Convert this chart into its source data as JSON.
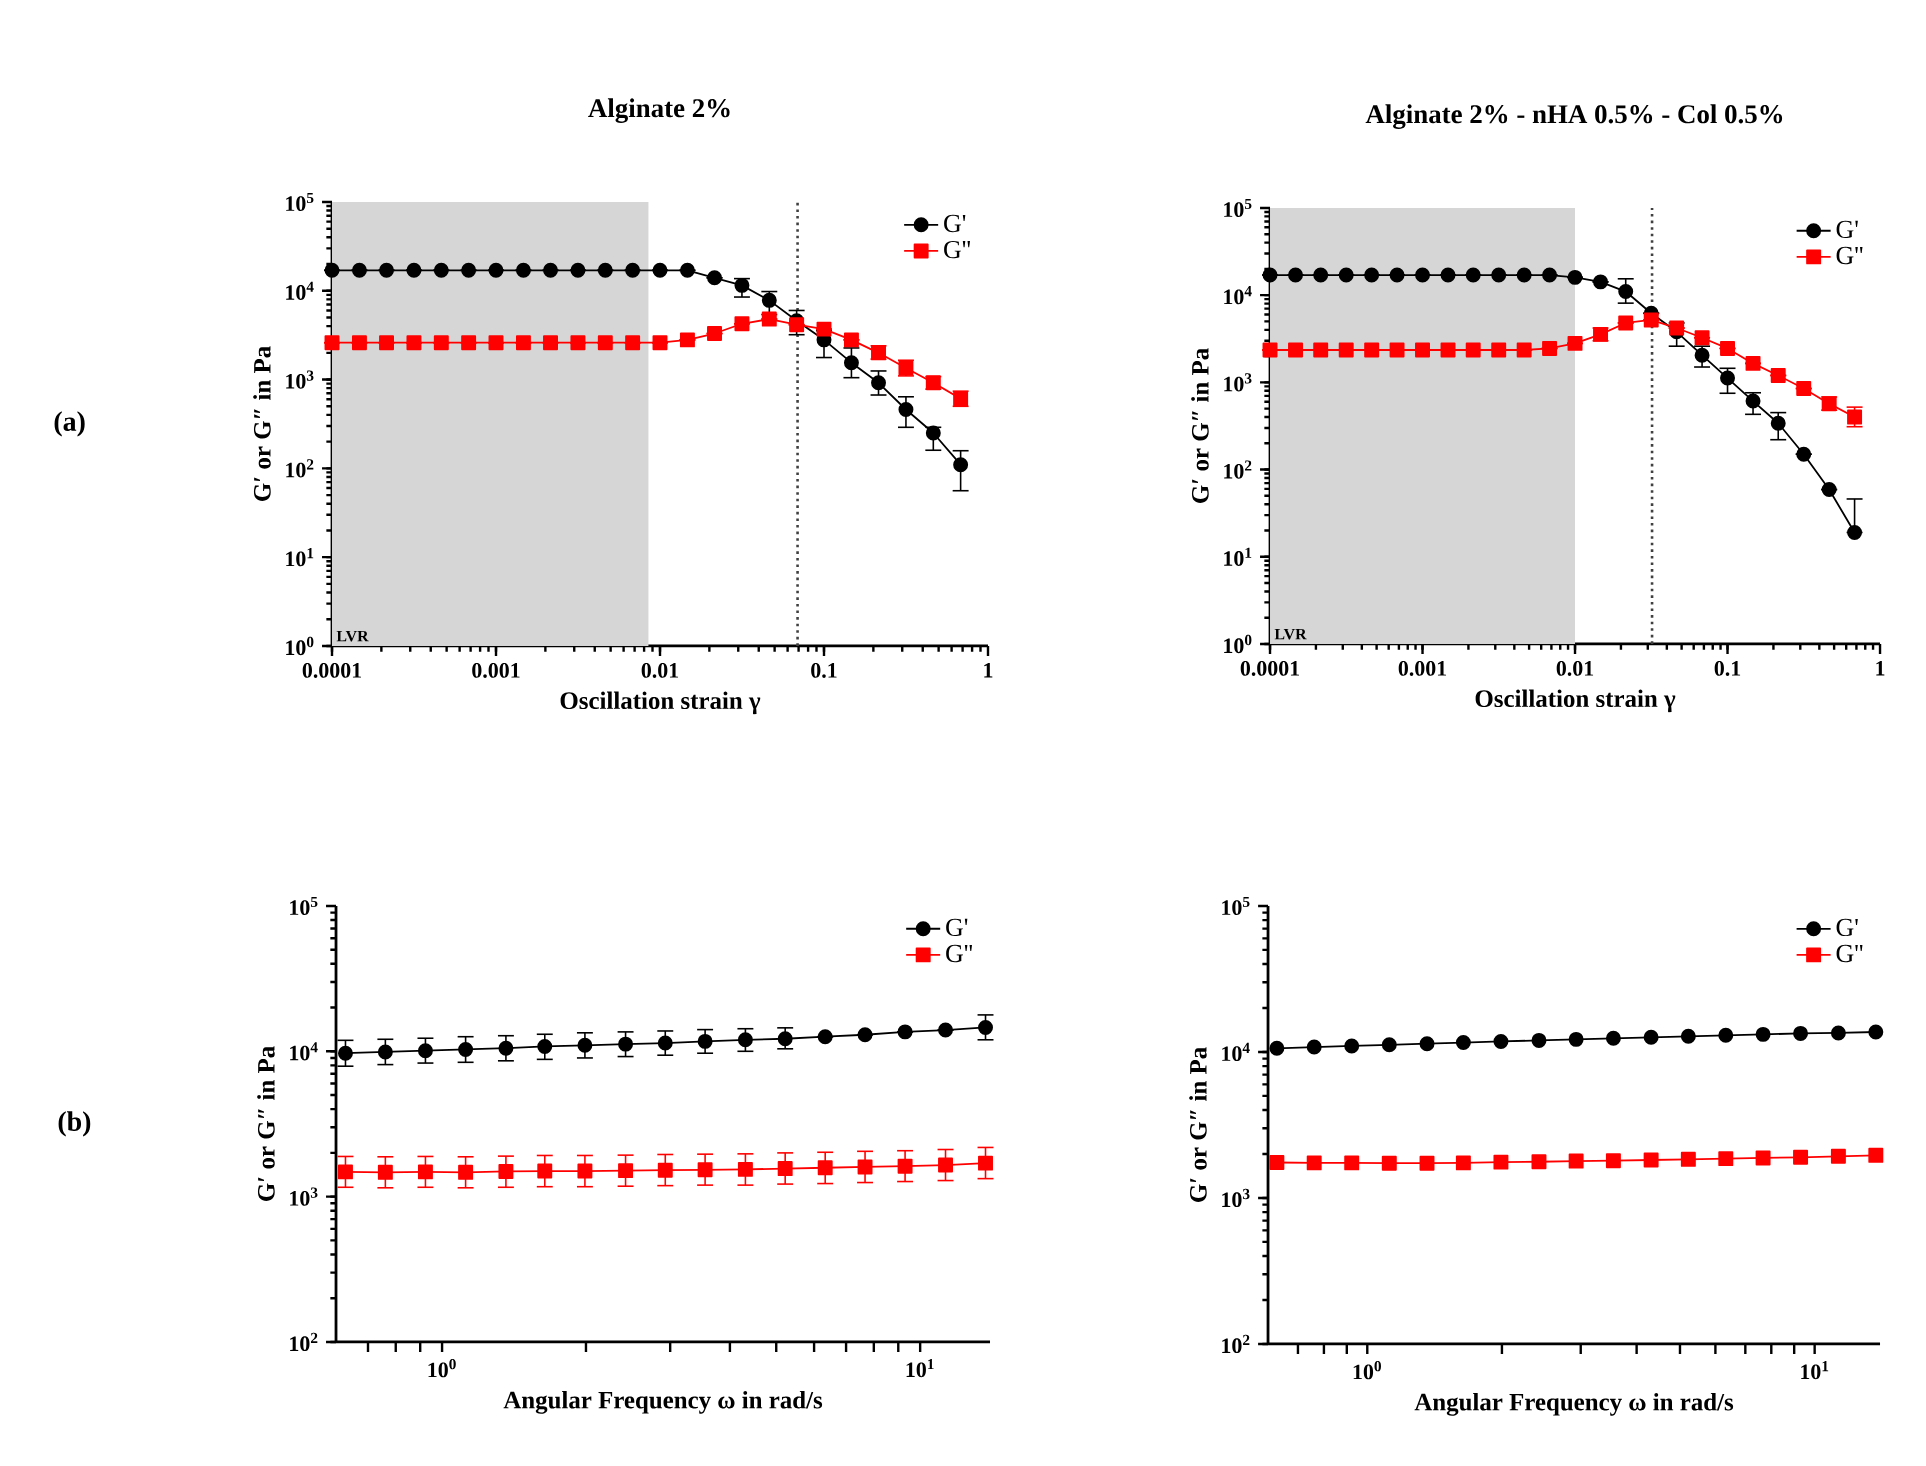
{
  "chart_data": [
    {
      "type": "line",
      "title": "Alginate 2%",
      "xlabel": "Oscillation strain γ",
      "ylabel": "G′ or G″ in Pa",
      "log": "xy",
      "legend": "top right",
      "annotations": [
        "(a)"
      ],
      "x": [
        0.0001,
        0.000147,
        0.000215,
        0.000316,
        0.000464,
        0.000681,
        0.001,
        0.00147,
        0.00215,
        0.00316,
        0.00464,
        0.00681,
        0.01,
        0.0147,
        0.0215,
        0.0316,
        0.0464,
        0.0681,
        0.1,
        0.147,
        0.215,
        0.316,
        0.464,
        0.681
      ],
      "xlim": [
        0.0001,
        1
      ],
      "ylim": [
        1,
        100000
      ],
      "xticks": [
        {
          "value": 0.0001,
          "label": "0.0001"
        },
        {
          "value": 0.001,
          "label": "0.001"
        },
        {
          "value": 0.01,
          "label": "0.01"
        },
        {
          "value": 0.1,
          "label": "0.1"
        },
        {
          "value": 1,
          "label": "1"
        }
      ],
      "yticks": [
        {
          "value": 1,
          "label": "10$^{0}$"
        },
        {
          "value": 10,
          "label": "10$^{1}$"
        },
        {
          "value": 100,
          "label": "10$^{2}$"
        },
        {
          "value": 1000,
          "label": "10$^{3}$"
        },
        {
          "value": 10000,
          "label": "10$^{4}$"
        },
        {
          "value": 100000,
          "label": "10$^{5}$"
        }
      ],
      "bands": [
        {
          "axis": "x",
          "from": 0.0001,
          "to": 0.0085,
          "label": "LVR",
          "color": "#d6d6d6"
        }
      ],
      "ref_lines": [
        {
          "axis": "x",
          "value": 0.069,
          "color": "#404040",
          "line_style": "dotted"
        }
      ],
      "series": [
        {
          "name": "G'",
          "color": "#000000",
          "marker": "circle",
          "values": [
            17000,
            17000,
            17000,
            17000,
            17000,
            17000,
            17000,
            17000,
            17000,
            17000,
            17000,
            17000,
            17000,
            17000,
            14000,
            11500,
            7800,
            4600,
            2800,
            1550,
            920,
            460,
            250,
            110
          ],
          "errors": [
            null,
            null,
            null,
            null,
            null,
            null,
            null,
            null,
            null,
            null,
            null,
            null,
            null,
            null,
            null,
            [
              8500,
              13700
            ],
            [
              5400,
              9800
            ],
            [
              3200,
              6000
            ],
            [
              1770,
              3550
            ],
            [
              1050,
              2270
            ],
            [
              670,
              1250
            ],
            [
              290,
              640
            ],
            [
              160,
              290
            ],
            [
              56,
              158
            ]
          ]
        },
        {
          "name": "G''",
          "color": "#ff0000",
          "marker": "square",
          "values": [
            2600,
            2600,
            2600,
            2600,
            2600,
            2600,
            2600,
            2600,
            2600,
            2600,
            2600,
            2600,
            2600,
            2800,
            3300,
            4250,
            4800,
            4150,
            3700,
            2800,
            2000,
            1350,
            920,
            610
          ],
          "errors": [
            null,
            null,
            null,
            null,
            null,
            null,
            null,
            null,
            null,
            null,
            null,
            null,
            null,
            null,
            null,
            null,
            null,
            null,
            null,
            null,
            [
              1700,
              2400
            ],
            [
              1100,
              1650
            ],
            [
              780,
              1080
            ],
            [
              500,
              740
            ]
          ]
        }
      ]
    },
    {
      "type": "line",
      "title": "Alginate 2% - nHA 0.5% - Col 0.5%",
      "xlabel": "Oscillation strain γ",
      "ylabel": "G′ or G″ in Pa",
      "log": "xy",
      "legend": "top right",
      "x": [
        0.0001,
        0.000147,
        0.000215,
        0.000316,
        0.000464,
        0.000681,
        0.001,
        0.00147,
        0.00215,
        0.00316,
        0.00464,
        0.00681,
        0.01,
        0.0147,
        0.0215,
        0.0316,
        0.0464,
        0.0681,
        0.1,
        0.147,
        0.215,
        0.316,
        0.464,
        0.681
      ],
      "xlim": [
        0.0001,
        1
      ],
      "ylim": [
        1,
        100000
      ],
      "xticks": [
        {
          "value": 0.0001,
          "label": "0.0001"
        },
        {
          "value": 0.001,
          "label": "0.001"
        },
        {
          "value": 0.01,
          "label": "0.01"
        },
        {
          "value": 0.1,
          "label": "0.1"
        },
        {
          "value": 1,
          "label": "1"
        }
      ],
      "yticks": [
        {
          "value": 1,
          "label": "10$^{0}$"
        },
        {
          "value": 10,
          "label": "10$^{1}$"
        },
        {
          "value": 100,
          "label": "10$^{2}$"
        },
        {
          "value": 1000,
          "label": "10$^{3}$"
        },
        {
          "value": 10000,
          "label": "10$^{4}$"
        },
        {
          "value": 100000,
          "label": "10$^{5}$"
        }
      ],
      "bands": [
        {
          "axis": "x",
          "from": 0.0001,
          "to": 0.01,
          "label": "LVR",
          "color": "#d6d6d6"
        }
      ],
      "ref_lines": [
        {
          "axis": "x",
          "value": 0.032,
          "color": "#404040",
          "line_style": "dotted"
        }
      ],
      "series": [
        {
          "name": "G'",
          "color": "#000000",
          "marker": "circle",
          "values": [
            17000,
            17000,
            17000,
            17000,
            17000,
            17000,
            17000,
            17000,
            17000,
            17000,
            17000,
            17000,
            16000,
            14200,
            11000,
            6200,
            3800,
            2050,
            1120,
            610,
            340,
            150,
            59,
            19
          ],
          "errors": [
            null,
            null,
            null,
            null,
            null,
            null,
            null,
            null,
            null,
            null,
            null,
            null,
            null,
            null,
            [
              8100,
              15400
            ],
            null,
            [
              2600,
              4800
            ],
            [
              1500,
              2600
            ],
            [
              750,
              1450
            ],
            [
              430,
              760
            ],
            [
              220,
              450
            ],
            null,
            null,
            [
              19,
              46
            ]
          ]
        },
        {
          "name": "G''",
          "color": "#ff0000",
          "marker": "square",
          "values": [
            2350,
            2350,
            2350,
            2350,
            2350,
            2350,
            2350,
            2350,
            2350,
            2350,
            2350,
            2450,
            2800,
            3550,
            4800,
            5200,
            4200,
            3250,
            2450,
            1650,
            1200,
            850,
            570,
            400
          ],
          "errors": [
            null,
            null,
            null,
            null,
            null,
            null,
            null,
            null,
            null,
            null,
            null,
            null,
            null,
            [
              3000,
              4200
            ],
            null,
            null,
            null,
            null,
            null,
            null,
            null,
            null,
            [
              480,
              680
            ],
            [
              310,
              520
            ]
          ]
        }
      ]
    },
    {
      "type": "line",
      "xlabel": "Angular Frequency ω in rad/s",
      "ylabel": "G′ or G″ in Pa",
      "log": "xy",
      "legend": "top right",
      "annotations": [
        "(b)"
      ],
      "x": [
        0.628,
        0.761,
        0.923,
        1.12,
        1.36,
        1.64,
        1.99,
        2.42,
        2.93,
        3.55,
        4.31,
        5.22,
        6.33,
        7.67,
        9.3,
        11.3,
        13.7
      ],
      "xlim": [
        0.6,
        14
      ],
      "ylim": [
        100,
        100000
      ],
      "xticks": [
        {
          "value": 0.7,
          "label": null
        },
        {
          "value": 0.8,
          "label": null
        },
        {
          "value": 0.9,
          "label": null
        },
        {
          "value": 1,
          "label": "10$^{0}$"
        },
        {
          "value": 2,
          "label": null
        },
        {
          "value": 3,
          "label": null
        },
        {
          "value": 4,
          "label": null
        },
        {
          "value": 5,
          "label": null
        },
        {
          "value": 6,
          "label": null
        },
        {
          "value": 7,
          "label": null
        },
        {
          "value": 8,
          "label": null
        },
        {
          "value": 9,
          "label": null
        },
        {
          "value": 10,
          "label": "10$^{1}$"
        }
      ],
      "yticks": [
        {
          "value": 100,
          "label": "10$^{2}$"
        },
        {
          "value": 1000,
          "label": "10$^{3}$"
        },
        {
          "value": 10000,
          "label": "10$^{4}$"
        },
        {
          "value": 100000,
          "label": "10$^{5}$"
        }
      ],
      "series": [
        {
          "name": "G'",
          "color": "#000000",
          "marker": "circle",
          "values": [
            9700,
            9900,
            10100,
            10300,
            10500,
            10800,
            11000,
            11200,
            11400,
            11700,
            12000,
            12200,
            12600,
            13000,
            13600,
            14000,
            14600
          ],
          "errors": [
            [
              7900,
              11900
            ],
            [
              8100,
              12100
            ],
            [
              8300,
              12300
            ],
            [
              8400,
              12600
            ],
            [
              8600,
              12800
            ],
            [
              8800,
              13100
            ],
            [
              9000,
              13400
            ],
            [
              9200,
              13600
            ],
            [
              9400,
              13800
            ],
            [
              9700,
              14100
            ],
            [
              10000,
              14300
            ],
            [
              10400,
              14500
            ],
            null,
            null,
            null,
            null,
            [
              12000,
              17800
            ]
          ]
        },
        {
          "name": "G''",
          "color": "#ff0000",
          "marker": "square",
          "values": [
            1480,
            1470,
            1480,
            1470,
            1490,
            1500,
            1500,
            1510,
            1520,
            1530,
            1540,
            1560,
            1580,
            1600,
            1620,
            1650,
            1700
          ],
          "errors": [
            [
              1160,
              1890
            ],
            [
              1150,
              1880
            ],
            [
              1160,
              1890
            ],
            [
              1150,
              1880
            ],
            [
              1160,
              1900
            ],
            [
              1170,
              1920
            ],
            [
              1170,
              1920
            ],
            [
              1180,
              1930
            ],
            [
              1190,
              1950
            ],
            [
              1200,
              1960
            ],
            [
              1200,
              1970
            ],
            [
              1220,
              2000
            ],
            [
              1230,
              2020
            ],
            [
              1250,
              2050
            ],
            [
              1270,
              2070
            ],
            [
              1290,
              2110
            ],
            [
              1330,
              2180
            ]
          ]
        }
      ]
    },
    {
      "type": "line",
      "xlabel": "Angular Frequency ω in rad/s",
      "ylabel": "G′ or G″ in Pa",
      "log": "xy",
      "legend": "top right",
      "x": [
        0.628,
        0.761,
        0.923,
        1.12,
        1.36,
        1.64,
        1.99,
        2.42,
        2.93,
        3.55,
        4.31,
        5.22,
        6.33,
        7.67,
        9.3,
        11.3,
        13.7
      ],
      "xlim": [
        0.6,
        14
      ],
      "ylim": [
        100,
        100000
      ],
      "xticks": [
        {
          "value": 0.7,
          "label": null
        },
        {
          "value": 0.8,
          "label": null
        },
        {
          "value": 0.9,
          "label": null
        },
        {
          "value": 1,
          "label": "10$^{0}$"
        },
        {
          "value": 2,
          "label": null
        },
        {
          "value": 3,
          "label": null
        },
        {
          "value": 4,
          "label": null
        },
        {
          "value": 5,
          "label": null
        },
        {
          "value": 6,
          "label": null
        },
        {
          "value": 7,
          "label": null
        },
        {
          "value": 8,
          "label": null
        },
        {
          "value": 9,
          "label": null
        },
        {
          "value": 10,
          "label": "10$^{1}$"
        }
      ],
      "yticks": [
        {
          "value": 100,
          "label": "10$^{2}$"
        },
        {
          "value": 1000,
          "label": "10$^{3}$"
        },
        {
          "value": 10000,
          "label": "10$^{4}$"
        },
        {
          "value": 100000,
          "label": "10$^{5}$"
        }
      ],
      "series": [
        {
          "name": "G'",
          "color": "#000000",
          "marker": "circle",
          "values": [
            10600,
            10800,
            11000,
            11200,
            11400,
            11600,
            11800,
            12000,
            12200,
            12400,
            12600,
            12800,
            13000,
            13200,
            13400,
            13500,
            13700
          ]
        },
        {
          "name": "G''",
          "color": "#ff0000",
          "marker": "square",
          "values": [
            1750,
            1740,
            1740,
            1730,
            1730,
            1740,
            1760,
            1770,
            1790,
            1800,
            1820,
            1840,
            1860,
            1880,
            1900,
            1930,
            1960
          ]
        }
      ]
    }
  ]
}
